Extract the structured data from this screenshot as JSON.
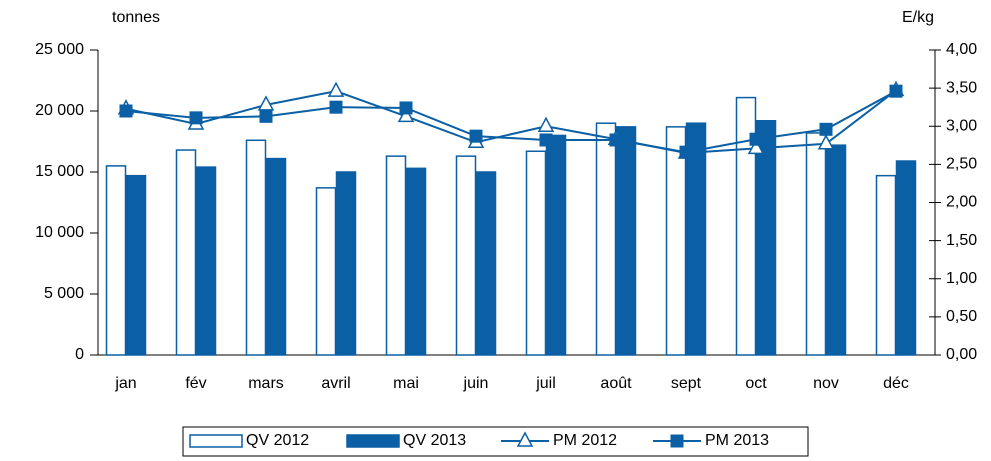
{
  "chart_data": {
    "type": "bar-line",
    "y_label": "tonnes",
    "y2_label": "E/kg",
    "categories": [
      "jan",
      "fév",
      "mars",
      "avril",
      "mai",
      "juin",
      "juil",
      "août",
      "sept",
      "oct",
      "nov",
      "déc"
    ],
    "series": [
      {
        "name": "QV 2012",
        "type": "bar",
        "style": "outline",
        "color": "#0b5fa5",
        "values": [
          15500,
          16800,
          17600,
          13700,
          16300,
          16300,
          16700,
          19000,
          18700,
          21100,
          18200,
          14700
        ]
      },
      {
        "name": "QV 2013",
        "type": "bar",
        "style": "filled",
        "color": "#0b5fa5",
        "values": [
          14700,
          15400,
          16100,
          15000,
          15300,
          15000,
          18000,
          18700,
          19000,
          19200,
          17200,
          15900
        ]
      },
      {
        "name": "PM 2012",
        "type": "line",
        "marker": "triangle",
        "axis": "y2",
        "color": "#0b5fa5",
        "values": [
          3.23,
          3.03,
          3.28,
          3.46,
          3.13,
          2.79,
          3.0,
          2.83,
          2.65,
          2.71,
          2.77,
          3.47
        ]
      },
      {
        "name": "PM 2013",
        "type": "line",
        "marker": "square",
        "axis": "y2",
        "color": "#0b5fa5",
        "values": [
          3.2,
          3.11,
          3.13,
          3.25,
          3.24,
          2.87,
          2.82,
          2.82,
          2.66,
          2.83,
          2.96,
          3.46
        ]
      }
    ],
    "ylim": [
      0,
      25000
    ],
    "yticks": [
      0,
      {
        "value": 5000,
        "label": "5 000"
      },
      {
        "value": 10000,
        "label": "10 000"
      },
      {
        "value": 15000,
        "label": "15 000"
      },
      {
        "value": 20000,
        "label": "20 000"
      },
      {
        "value": 25000,
        "label": "25 000"
      }
    ],
    "y2lim": [
      0,
      4
    ],
    "y2ticks": [
      {
        "value": 0,
        "label": "0,00"
      },
      {
        "value": 0.5,
        "label": "0,50"
      },
      {
        "value": 1,
        "label": "1,00"
      },
      {
        "value": 1.5,
        "label": "1,50"
      },
      {
        "value": 2,
        "label": "2,00"
      },
      {
        "value": 2.5,
        "label": "2,50"
      },
      {
        "value": 3,
        "label": "3,00"
      },
      {
        "value": 3.5,
        "label": "3,50"
      },
      {
        "value": 4,
        "label": "4,00"
      }
    ],
    "legend": "bottom"
  }
}
